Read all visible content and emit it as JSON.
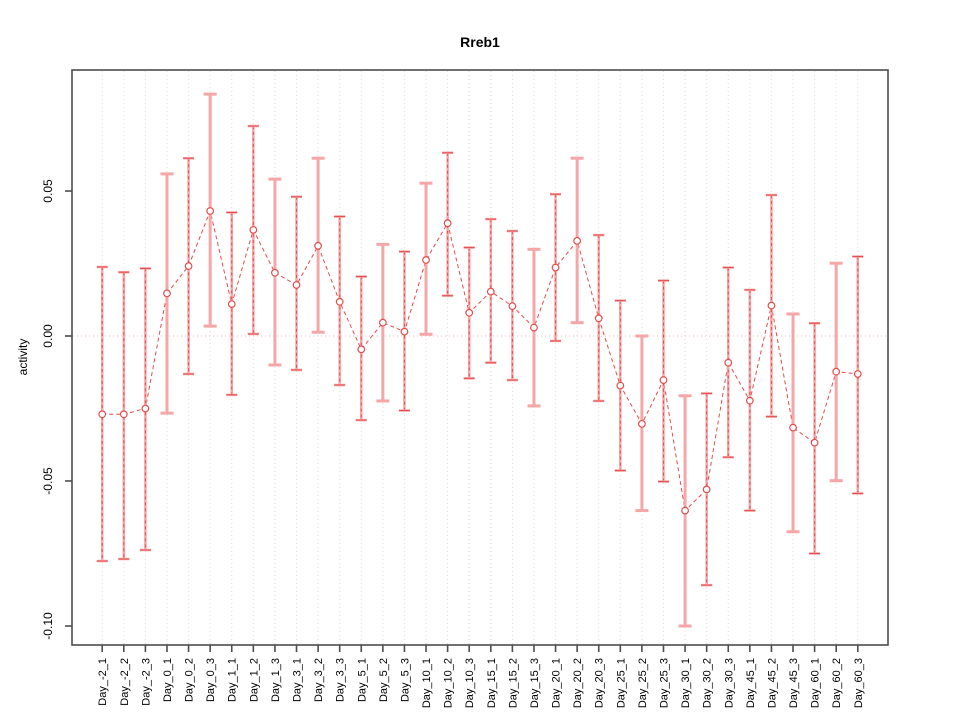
{
  "title": "Rreb1",
  "chart_data": {
    "type": "scatter",
    "title": "Rreb1",
    "xlabel": "",
    "ylabel": "activity",
    "ylim": [
      -0.109,
      0.092
    ],
    "yticks": [
      0.05,
      0.0,
      -0.05,
      -0.1
    ],
    "ytick_labels": [
      "0.05",
      "0.00",
      "-0.05",
      "-0.10"
    ],
    "grid": "vertical-dotted-per-category",
    "zero_reference_line": true,
    "legend": "none",
    "categories": [
      "Day_-2_1",
      "Day_-2_2",
      "Day_-2_3",
      "Day_0_1",
      "Day_0_2",
      "Day_0_3",
      "Day_1_1",
      "Day_1_2",
      "Day_1_3",
      "Day_3_1",
      "Day_3_2",
      "Day_3_3",
      "Day_5_1",
      "Day_5_2",
      "Day_5_3",
      "Day_10_1",
      "Day_10_2",
      "Day_10_3",
      "Day_15_1",
      "Day_15_2",
      "Day_15_3",
      "Day_20_1",
      "Day_20_2",
      "Day_20_3",
      "Day_25_1",
      "Day_25_2",
      "Day_25_3",
      "Day_30_1",
      "Day_30_2",
      "Day_30_3",
      "Day_45_1",
      "Day_45_2",
      "Day_45_3",
      "Day_60_1",
      "Day_60_2",
      "Day_60_3"
    ],
    "series": [
      {
        "name": "activity",
        "marker": "open-circle",
        "line": "dashed",
        "values": [
          -0.027,
          -0.027,
          -0.025,
          0.0147,
          0.0241,
          0.0431,
          0.011,
          0.0366,
          0.0218,
          0.0176,
          0.0311,
          0.0118,
          -0.0046,
          0.0046,
          0.0015,
          0.0262,
          0.0389,
          0.008,
          0.0153,
          0.0103,
          0.0029,
          0.0236,
          0.0328,
          0.0061,
          -0.0171,
          -0.0303,
          -0.0152,
          -0.0602,
          -0.0529,
          -0.0092,
          -0.0223,
          0.0105,
          -0.0316,
          -0.0368,
          -0.0123,
          -0.0131
        ],
        "error_high": [
          0.0238,
          0.022,
          0.0233,
          0.0559,
          0.0613,
          0.0834,
          0.0426,
          0.0724,
          0.0541,
          0.048,
          0.0613,
          0.0412,
          0.0205,
          0.0316,
          0.0291,
          0.0527,
          0.0632,
          0.0305,
          0.0403,
          0.0362,
          0.0299,
          0.0489,
          0.0613,
          0.0348,
          0.0122,
          0.0,
          0.0191,
          -0.0206,
          -0.0198,
          0.0236,
          0.0159,
          0.0486,
          0.0076,
          0.0044,
          0.0251,
          0.0274
        ],
        "error_low": [
          -0.0776,
          -0.0769,
          -0.0738,
          -0.0266,
          -0.0131,
          0.0034,
          -0.0203,
          0.0007,
          -0.01,
          -0.0117,
          0.0013,
          -0.0169,
          -0.029,
          -0.0224,
          -0.0257,
          0.0006,
          0.0139,
          -0.0146,
          -0.0092,
          -0.0152,
          -0.0241,
          -0.0017,
          0.0046,
          -0.0224,
          -0.0464,
          -0.0602,
          -0.0502,
          -0.1,
          -0.0859,
          -0.0418,
          -0.0602,
          -0.0278,
          -0.0675,
          -0.075,
          -0.0499,
          -0.0543
        ],
        "bar_style": [
          "striped",
          "striped",
          "striped",
          "pink",
          "striped",
          "pink",
          "striped",
          "striped",
          "pink",
          "striped",
          "pink",
          "striped",
          "striped",
          "pink",
          "striped",
          "pink",
          "striped",
          "striped",
          "striped",
          "striped",
          "pink",
          "striped",
          "pink",
          "striped",
          "striped",
          "pink",
          "striped",
          "pink",
          "striped",
          "striped",
          "striped",
          "striped",
          "pink",
          "striped",
          "pink",
          "striped"
        ]
      }
    ],
    "colors": {
      "point": "#e84b4b",
      "series_line": "#e84b4b",
      "error_bar_pink": "#f5a6a6",
      "error_bar_red": "#e84b4b",
      "gridline": "#dcdcdc",
      "zero_line": "#f0bfbf",
      "box": "#4d4d4d",
      "text": "#000000"
    }
  }
}
